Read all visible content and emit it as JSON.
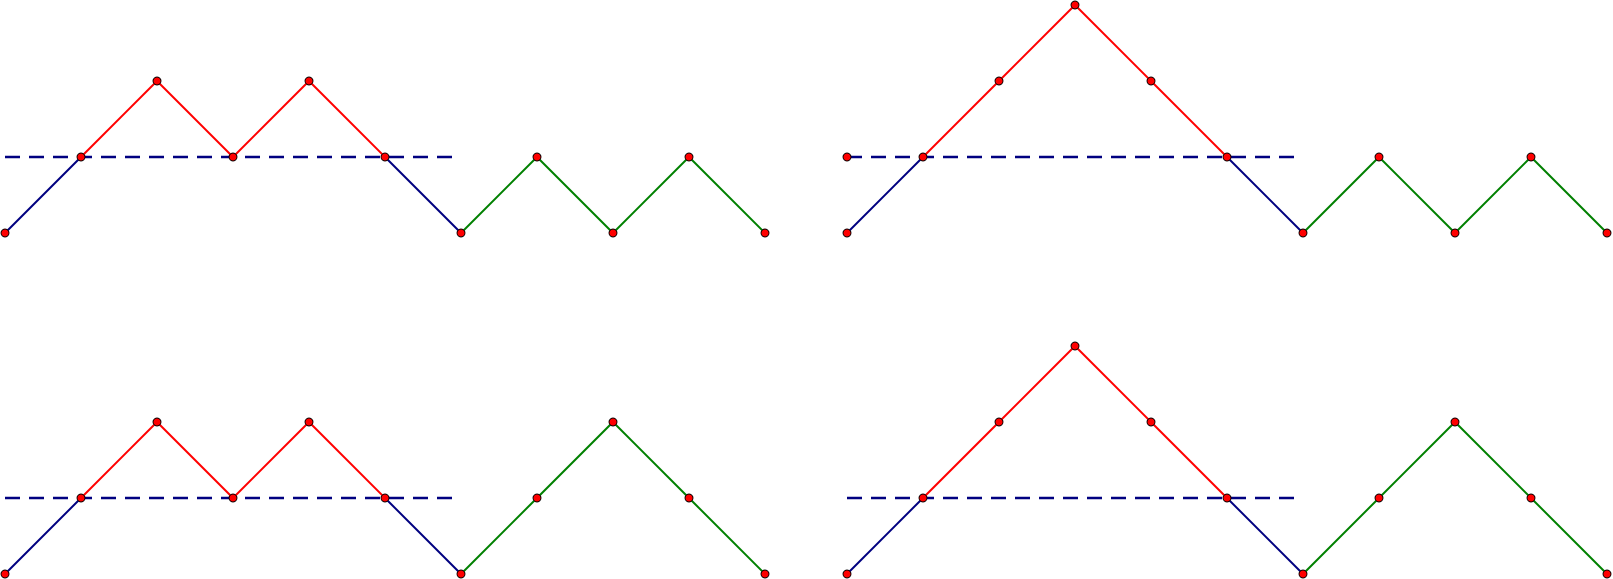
{
  "colors": {
    "prefix": "#000080",
    "excursion": "#ff0000",
    "suffix": "#008000",
    "baseline": "#000080",
    "vertex_fill": "#ff0000",
    "vertex_stroke": "#000000"
  },
  "paths": [
    {
      "id": "top-left",
      "heights": [
        -1,
        0,
        1,
        0,
        1,
        0,
        -1,
        0,
        -1,
        0,
        -1
      ],
      "segment_colors": [
        "prefix",
        "excursion",
        "excursion",
        "excursion",
        "excursion",
        "prefix",
        "suffix",
        "suffix",
        "suffix",
        "suffix"
      ],
      "baseline_from_step": 0,
      "baseline_to_step": 6
    },
    {
      "id": "top-right",
      "heights": [
        -1,
        0,
        1,
        2,
        1,
        0,
        -1,
        0,
        -1,
        0,
        -1
      ],
      "segment_colors": [
        "prefix",
        "excursion",
        "excursion",
        "excursion",
        "excursion",
        "prefix",
        "suffix",
        "suffix",
        "suffix",
        "suffix"
      ],
      "baseline_from_step": 0,
      "baseline_to_step": 6,
      "baseline_start_marker": true
    },
    {
      "id": "bottom-left",
      "heights": [
        -1,
        0,
        1,
        0,
        1,
        0,
        -1,
        0,
        1,
        0,
        -1
      ],
      "segment_colors": [
        "prefix",
        "excursion",
        "excursion",
        "excursion",
        "excursion",
        "prefix",
        "suffix",
        "suffix",
        "suffix",
        "suffix"
      ],
      "baseline_from_step": 0,
      "baseline_to_step": 6
    },
    {
      "id": "bottom-right",
      "heights": [
        -1,
        0,
        1,
        2,
        1,
        0,
        -1,
        0,
        1,
        0,
        -1
      ],
      "segment_colors": [
        "prefix",
        "excursion",
        "excursion",
        "excursion",
        "excursion",
        "prefix",
        "suffix",
        "suffix",
        "suffix",
        "suffix"
      ],
      "baseline_from_step": 0,
      "baseline_to_step": 6
    }
  ]
}
